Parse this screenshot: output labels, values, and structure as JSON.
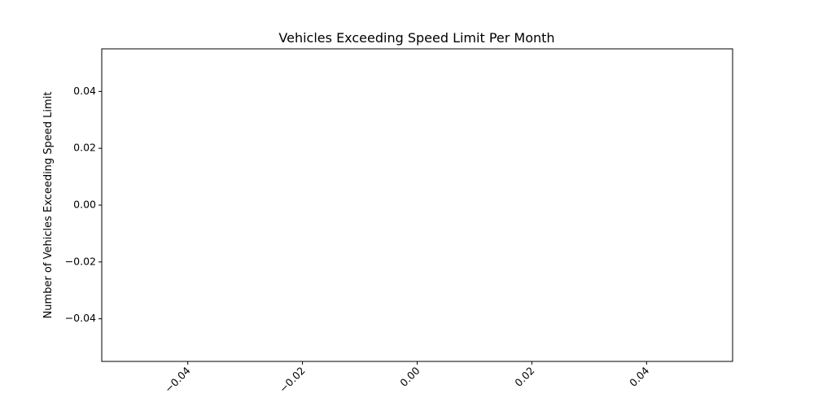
{
  "chart_data": {
    "type": "line",
    "title": "Vehicles Exceeding Speed Limit Per Month",
    "xlabel": "",
    "ylabel": "Number of Vehicles Exceeding Speed Limit",
    "x": [],
    "series": [],
    "xlim": [
      -0.055,
      0.055
    ],
    "ylim": [
      -0.055,
      0.055
    ],
    "xticks": [
      -0.04,
      -0.02,
      0.0,
      0.02,
      0.04
    ],
    "xtick_labels": [
      "−0.04",
      "−0.02",
      "0.00",
      "0.02",
      "0.04"
    ],
    "yticks": [
      0.04,
      0.02,
      0.0,
      -0.02,
      -0.04
    ],
    "ytick_labels": [
      "0.04",
      "0.02",
      "0.00",
      "−0.02",
      "−0.04"
    ],
    "xtick_rotation": 45,
    "grid": false,
    "legend": "none"
  }
}
